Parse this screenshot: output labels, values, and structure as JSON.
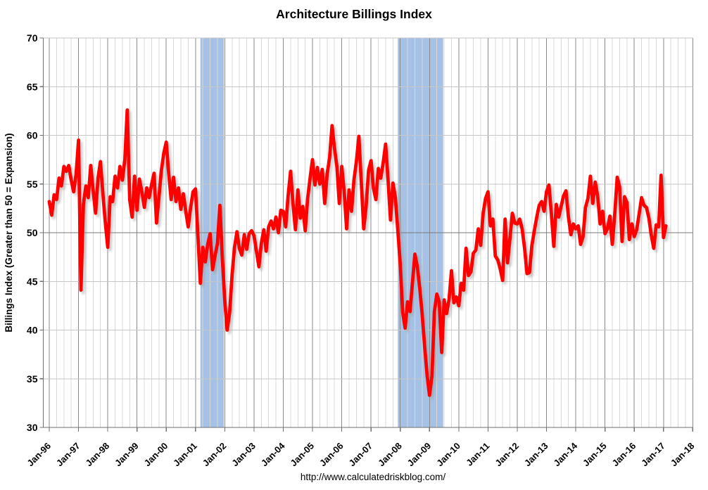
{
  "chart": {
    "title": "Architecture Billings Index",
    "source": "http://www.calculatedriskblog.com/",
    "y_axis": {
      "title": "Billings Index (Greater than 50 = Expansion)",
      "min": 30,
      "max": 70,
      "tick_interval": 5,
      "reference_line": 50,
      "tick_labels": [
        "30",
        "35",
        "40",
        "45",
        "50",
        "55",
        "60",
        "65",
        "70"
      ]
    },
    "x_axis": {
      "tick_labels": [
        "Jan-96",
        "Jan-97",
        "Jan-98",
        "Jan-99",
        "Jan-00",
        "Jan-01",
        "Jan-02",
        "Jan-03",
        "Jan-04",
        "Jan-05",
        "Jan-06",
        "Jan-07",
        "Jan-08",
        "Jan-09",
        "Jan-10",
        "Jan-11",
        "Jan-12",
        "Jan-13",
        "Jan-14",
        "Jan-15",
        "Jan-16",
        "Jan-17",
        "Jan-18"
      ]
    }
  },
  "chart_data": {
    "type": "line",
    "series_name": "Architecture Billings Index",
    "start": "1996-01",
    "end": "2017-02",
    "frequency": "monthly",
    "ylim": [
      30,
      70
    ],
    "x_axis_end": "2018-01",
    "line_color": "#FF0000",
    "band_color": "#a5c2e6",
    "reference_line_value": 50,
    "recession_bands": [
      {
        "from": "2001-03",
        "to": "2001-12"
      },
      {
        "from": "2007-12",
        "to": "2009-06"
      }
    ],
    "values": [
      53.2,
      51.8,
      53.9,
      53.4,
      55.6,
      54.8,
      56.8,
      56.3,
      56.9,
      55.4,
      54.2,
      56.0,
      59.5,
      44.1,
      52.9,
      54.8,
      53.6,
      56.9,
      54.4,
      52.0,
      55.6,
      57.3,
      54.0,
      51.0,
      48.5,
      53.7,
      53.2,
      55.8,
      54.6,
      56.8,
      55.4,
      57.5,
      62.6,
      53.4,
      51.6,
      55.8,
      52.3,
      55.5,
      54.2,
      52.6,
      54.6,
      53.6,
      55.0,
      56.1,
      51.0,
      53.7,
      56.4,
      58.2,
      59.3,
      56.1,
      53.4,
      55.7,
      53.2,
      54.6,
      52.4,
      54.0,
      52.2,
      50.6,
      52.6,
      54.2,
      54.5,
      49.6,
      44.8,
      48.5,
      47.0,
      48.8,
      49.9,
      46.2,
      47.6,
      48.9,
      52.8,
      47.4,
      43.0,
      40.0,
      41.8,
      45.7,
      48.5,
      50.1,
      48.4,
      47.7,
      49.8,
      48.3,
      49.9,
      50.2,
      49.7,
      48.1,
      46.5,
      48.9,
      50.3,
      48.1,
      50.6,
      51.2,
      50.4,
      51.6,
      50.0,
      52.3,
      52.2,
      50.6,
      53.8,
      56.3,
      53.0,
      50.3,
      54.4,
      51.5,
      52.7,
      50.2,
      53.5,
      55.6,
      57.5,
      54.9,
      56.7,
      55.0,
      56.5,
      53.0,
      56.0,
      57.7,
      61.0,
      58.7,
      56.8,
      53.0,
      56.8,
      54.2,
      50.4,
      54.4,
      52.2,
      55.4,
      57.3,
      59.9,
      55.3,
      50.4,
      52.7,
      56.4,
      57.4,
      54.6,
      53.4,
      56.6,
      55.6,
      57.2,
      59.1,
      55.4,
      51.3,
      55.1,
      53.6,
      50.2,
      46.8,
      41.8,
      40.2,
      42.9,
      41.9,
      44.8,
      47.8,
      46.5,
      44.3,
      41.6,
      38.3,
      35.4,
      33.3,
      35.3,
      41.9,
      43.7,
      42.9,
      37.7,
      43.1,
      41.7,
      43.1,
      46.1,
      42.8,
      43.4,
      42.5,
      44.8,
      44.1,
      48.4,
      45.6,
      46.0,
      47.9,
      48.2,
      50.4,
      48.7,
      52.0,
      53.5,
      54.2,
      50.7,
      51.4,
      47.6,
      47.2,
      46.3,
      45.1,
      51.4,
      46.9,
      49.4,
      52.0,
      51.0,
      50.9,
      51.4,
      50.4,
      48.4,
      45.8,
      45.9,
      48.7,
      50.2,
      51.6,
      52.8,
      53.2,
      52.2,
      54.2,
      54.9,
      51.9,
      48.6,
      52.9,
      51.6,
      52.7,
      53.8,
      54.3,
      51.6,
      49.8,
      50.9,
      50.4,
      50.7,
      48.8,
      49.6,
      52.6,
      53.5,
      55.8,
      53.0,
      55.2,
      53.7,
      50.9,
      52.2,
      49.9,
      50.4,
      51.7,
      48.8,
      51.9,
      55.7,
      54.7,
      49.1,
      53.7,
      53.1,
      49.3,
      50.9,
      49.6,
      50.3,
      51.9,
      53.6,
      52.8,
      52.6,
      51.5,
      49.7,
      48.4,
      50.8,
      50.6,
      55.9,
      49.5,
      50.7
    ]
  }
}
